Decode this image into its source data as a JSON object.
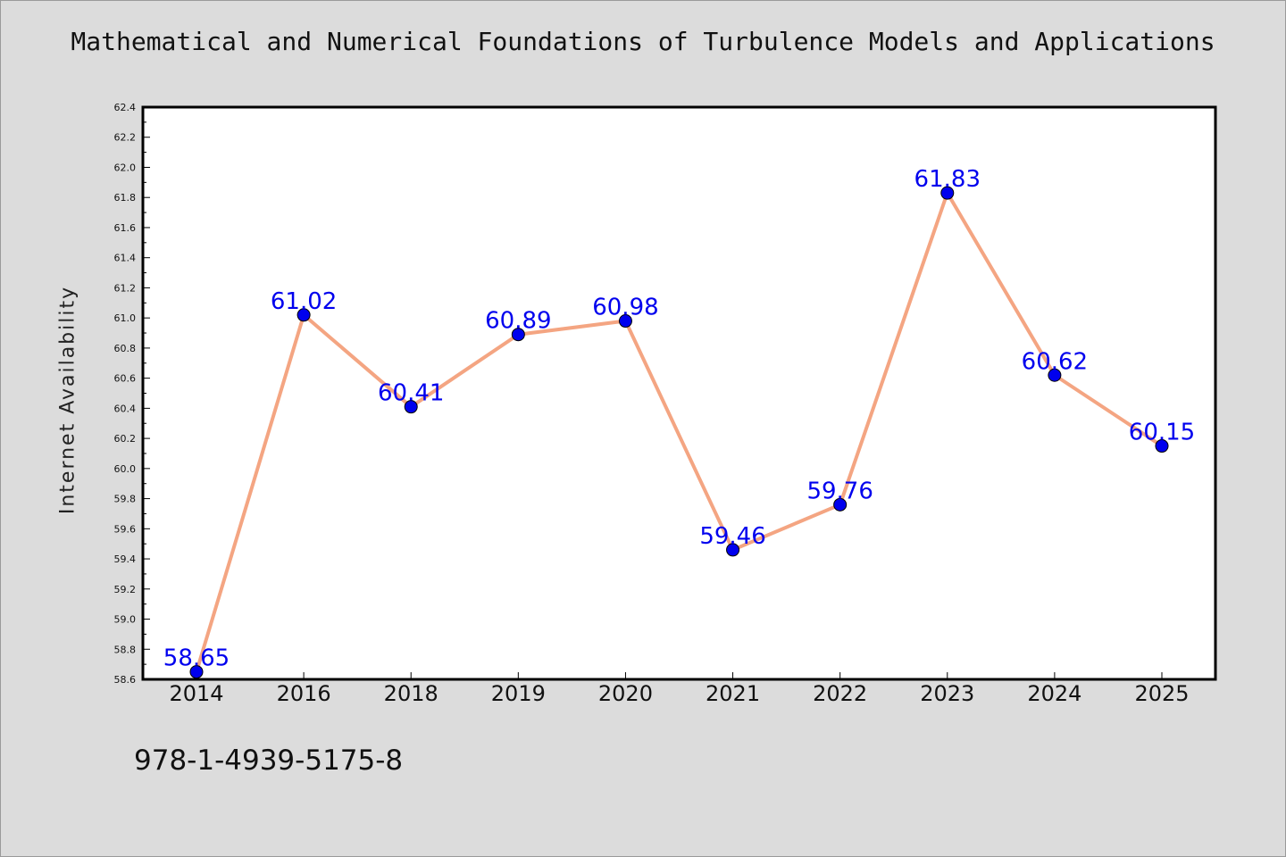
{
  "header": {
    "title": "Mathematical and Numerical Foundations of Turbulence Models and Applications"
  },
  "footer": {
    "isbn": "978-1-4939-5175-8"
  },
  "colors": {
    "background": "#dcdcdc",
    "plot_background": "#ffffff",
    "line": "#f4a582",
    "marker": "#0000ee",
    "data_label": "#0000ee"
  },
  "chart_data": {
    "type": "line",
    "title": "Mathematical and Numerical Foundations of Turbulence Models and Applications",
    "xlabel": "",
    "ylabel": "Internet Availability",
    "categories": [
      "2014",
      "2016",
      "2018",
      "2019",
      "2020",
      "2021",
      "2022",
      "2023",
      "2024",
      "2025"
    ],
    "series": [
      {
        "values": [
          58.65,
          61.02,
          60.41,
          60.89,
          60.98,
          59.46,
          59.76,
          61.83,
          60.62,
          60.15
        ]
      }
    ],
    "data_labels": [
      "58.65",
      "61.02",
      "60.41",
      "60.89",
      "60.98",
      "59.46",
      "59.76",
      "61.83",
      "60.62",
      "60.15"
    ],
    "ylim": [
      58.6,
      62.4
    ],
    "yticks": [
      "58.6",
      "58.8",
      "59.0",
      "59.2",
      "59.4",
      "59.6",
      "59.8",
      "60.0",
      "60.2",
      "60.4",
      "60.6",
      "60.8",
      "61.0",
      "61.2",
      "61.4",
      "61.6",
      "61.8",
      "62.0",
      "62.2",
      "62.4"
    ],
    "grid": false,
    "legend": "none"
  }
}
